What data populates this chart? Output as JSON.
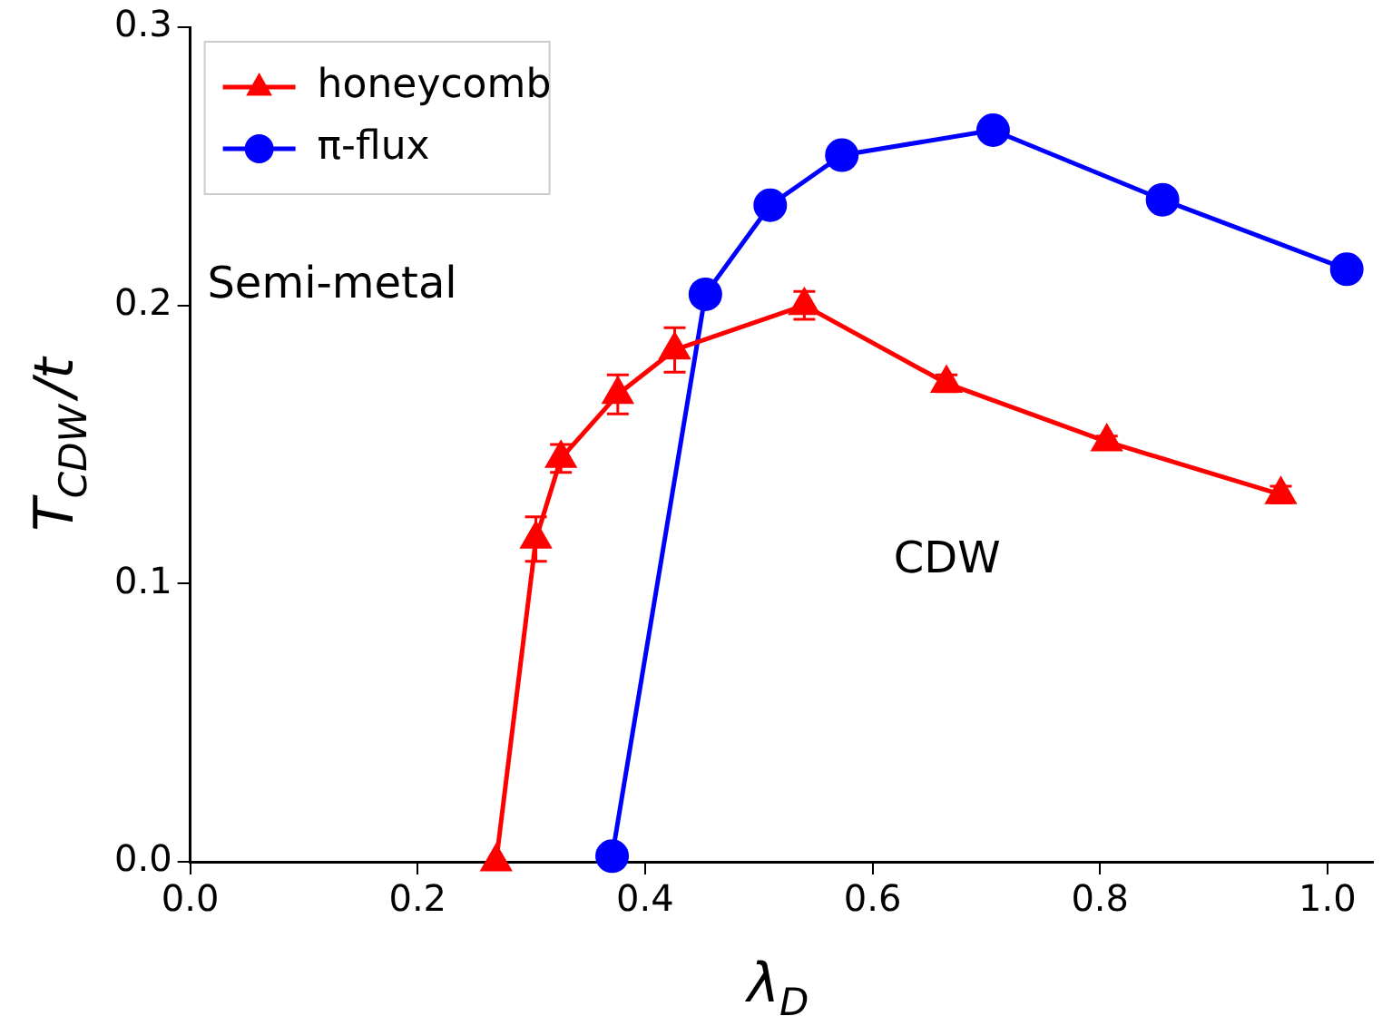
{
  "chart_data": {
    "type": "line",
    "xlabel": "λ$_{D}$",
    "ylabel": "T$_{CDW}$/t",
    "xlim": [
      0,
      1.04
    ],
    "xticks": [
      {
        "value": 0,
        "label": "0.0"
      },
      0.2,
      0.4,
      0.6,
      0.8,
      {
        "value": 1,
        "label": "1.0"
      }
    ],
    "ylim": [
      0,
      0.3
    ],
    "yticks": [
      {
        "value": 0,
        "label": "0.0"
      },
      0.1,
      0.2,
      0.3
    ],
    "grid": false,
    "legend": "top left",
    "line_style": "solid",
    "series": [
      {
        "name": "honeycomb",
        "color": "#ff0000",
        "marker": "triangle",
        "x": [
          0.269,
          0.304,
          0.326,
          0.376,
          0.426,
          0.54,
          0.665,
          0.806,
          0.959
        ],
        "values": [
          0,
          0.116,
          0.145,
          0.168,
          0.184,
          0.2,
          0.172,
          0.151,
          0.132
        ],
        "errors": [
          null,
          0.008,
          0.005,
          0.007,
          0.008,
          0.005,
          0.003,
          0.002,
          0.003
        ]
      },
      {
        "name": "π-flux",
        "color": "#0000ff",
        "marker": "circle",
        "x": [
          0.371,
          0.453,
          0.51,
          0.573,
          0.706,
          0.855,
          1.017
        ],
        "values": [
          0.002,
          0.204,
          0.236,
          0.254,
          0.263,
          0.238,
          0.213
        ]
      }
    ],
    "annotations": [
      "Semi-metal",
      "CDW"
    ]
  }
}
